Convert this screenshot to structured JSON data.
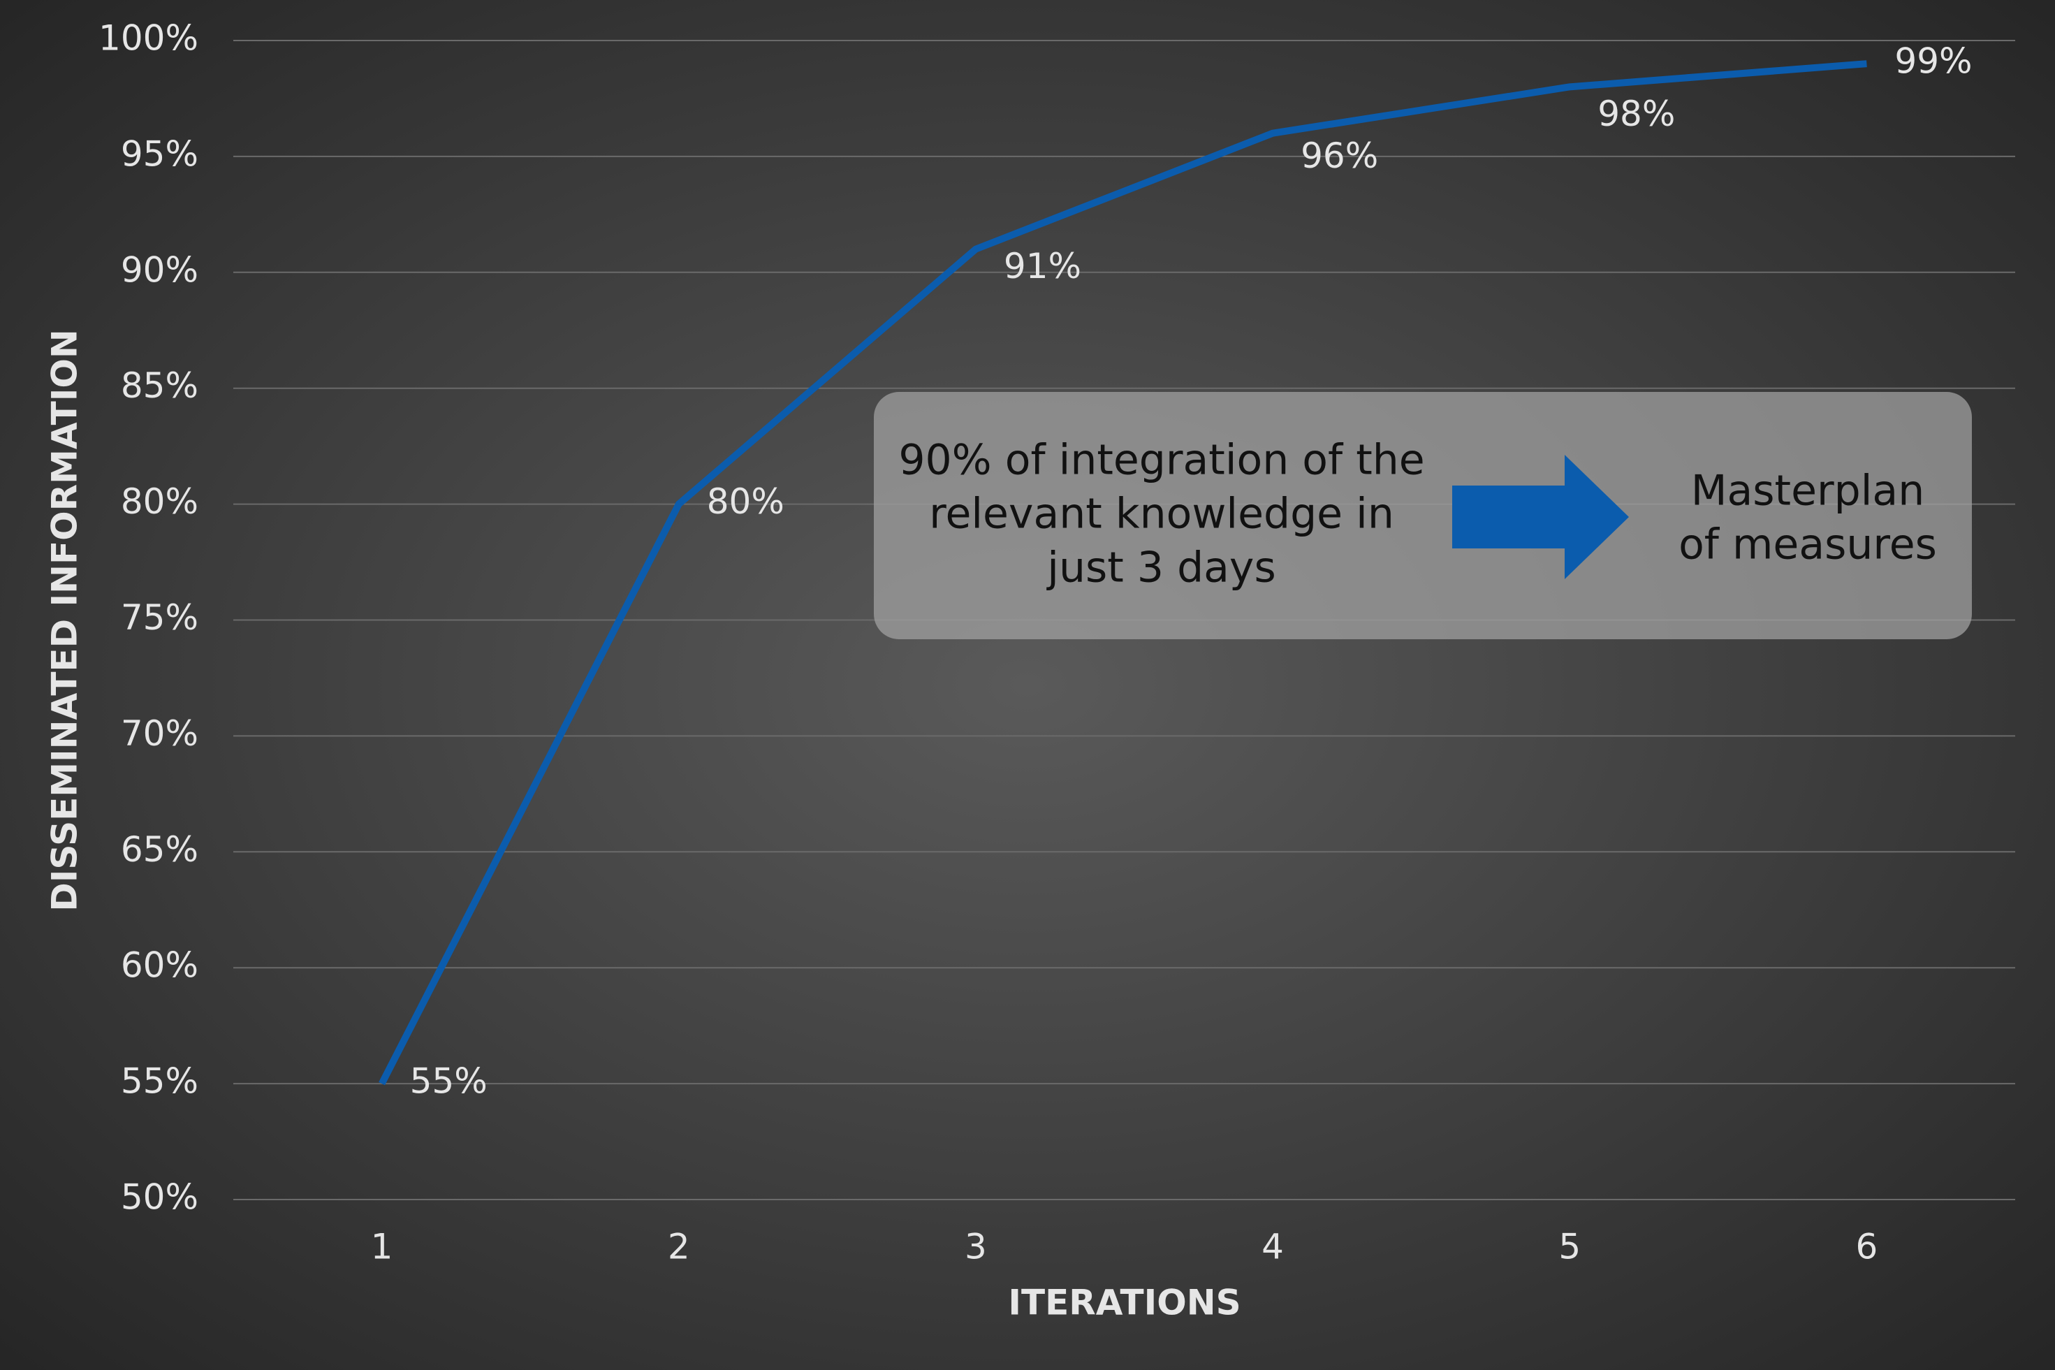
{
  "chart_data": {
    "type": "line",
    "categories": [
      "1",
      "2",
      "3",
      "4",
      "5",
      "6"
    ],
    "series": [
      {
        "name": "Disseminated information",
        "color": "#0b5cad",
        "values": [
          55,
          80,
          91,
          96,
          98,
          99
        ],
        "value_labels": [
          "55%",
          "80%",
          "91%",
          "96%",
          "98%",
          "99%"
        ]
      }
    ],
    "ylim": [
      50,
      100
    ],
    "yticks": [
      {
        "value": 50,
        "label": "50%"
      },
      {
        "value": 55,
        "label": "55%"
      },
      {
        "value": 60,
        "label": "60%"
      },
      {
        "value": 65,
        "label": "65%"
      },
      {
        "value": 70,
        "label": "70%"
      },
      {
        "value": 75,
        "label": "75%"
      },
      {
        "value": 80,
        "label": "80%"
      },
      {
        "value": 85,
        "label": "85%"
      },
      {
        "value": 90,
        "label": "90%"
      },
      {
        "value": 95,
        "label": "95%"
      },
      {
        "value": 100,
        "label": "100%"
      }
    ],
    "grid": true,
    "x_label": "ITERATIONS",
    "y_label": "DISSEMINATED INFORMATION",
    "annotation": {
      "left": [
        "90% of integration of the",
        "relevant knowledge in",
        "just 3 days"
      ],
      "right": [
        "Masterplan",
        "of measures"
      ]
    }
  }
}
